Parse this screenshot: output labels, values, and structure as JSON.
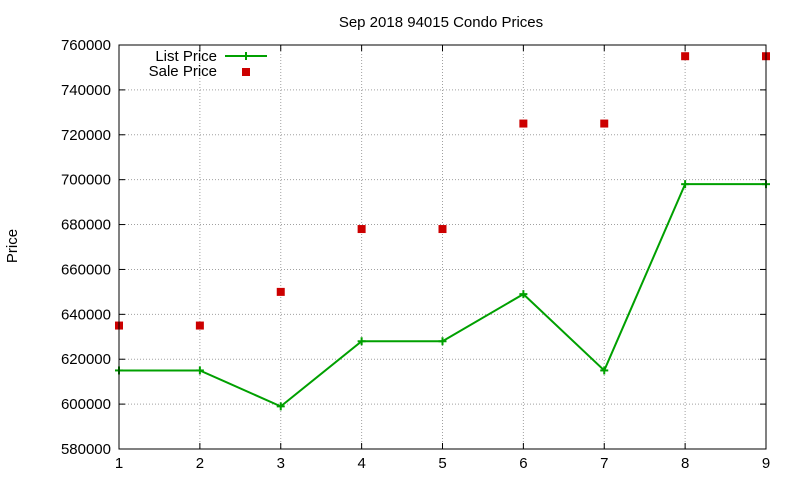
{
  "chart_data": {
    "type": "line",
    "title": "Sep 2018 94015 Condo Prices",
    "xlabel": "",
    "ylabel": "Price",
    "x": [
      1,
      2,
      3,
      4,
      5,
      6,
      7,
      8,
      9
    ],
    "xlim": [
      1,
      9
    ],
    "ylim": [
      580000,
      760000
    ],
    "x_ticks": [
      "1",
      "2",
      "3",
      "4",
      "5",
      "6",
      "7",
      "8",
      "9"
    ],
    "y_ticks": [
      "580000",
      "600000",
      "620000",
      "640000",
      "660000",
      "680000",
      "700000",
      "720000",
      "740000",
      "760000"
    ],
    "grid": true,
    "legend_position": "top-left",
    "series": [
      {
        "name": "List Price",
        "style": "line-with-plus-markers",
        "color": "#00a000",
        "values": [
          615000,
          615000,
          599000,
          628000,
          628000,
          649000,
          615000,
          698000,
          698000
        ]
      },
      {
        "name": "Sale Price",
        "style": "square-markers",
        "color": "#cc0000",
        "values": [
          635000,
          635000,
          650000,
          678000,
          678000,
          725000,
          725000,
          755000,
          755000
        ]
      }
    ]
  }
}
